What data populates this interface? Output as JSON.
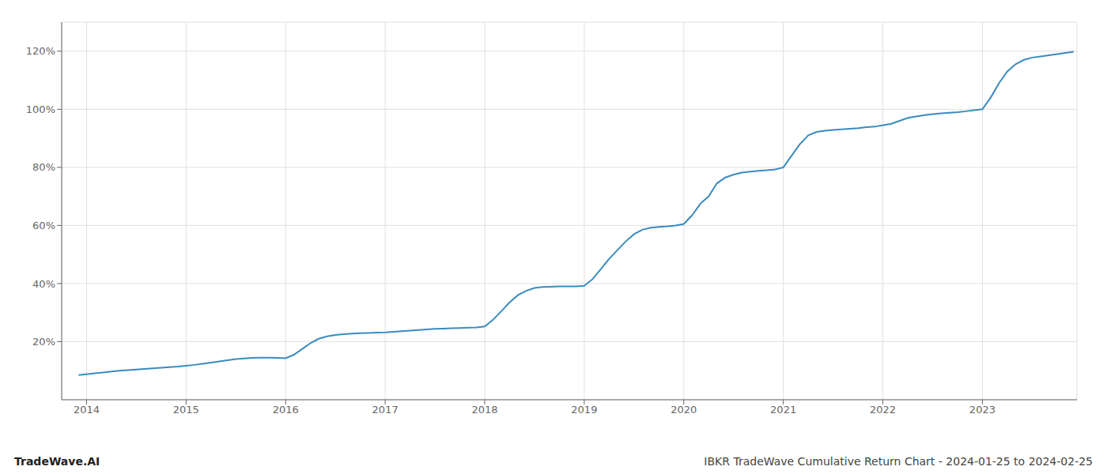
{
  "chart_data": {
    "type": "line",
    "title": "IBKR TradeWave Cumulative Return Chart - 2024-01-25 to 2024-02-25",
    "annotations": [
      "TradeWave.AI"
    ],
    "color": "#3a8bbf",
    "grid": true,
    "xlim": [
      2013.75,
      2023.95
    ],
    "ylim": [
      0,
      130
    ],
    "xticks": [
      2014,
      2015,
      2016,
      2017,
      2018,
      2019,
      2020,
      2021,
      2022,
      2023
    ],
    "yticks": [
      {
        "value": 20,
        "label": "20%"
      },
      {
        "value": 40,
        "label": "40%"
      },
      {
        "value": 60,
        "label": "60%"
      },
      {
        "value": 80,
        "label": "80%"
      },
      {
        "value": 100,
        "label": "100%"
      },
      {
        "value": 120,
        "label": "120%"
      }
    ],
    "x": [
      2013.92,
      2014.0,
      2014.083,
      2014.167,
      2014.25,
      2014.333,
      2014.417,
      2014.5,
      2014.583,
      2014.667,
      2014.75,
      2014.833,
      2014.917,
      2015.0,
      2015.083,
      2015.167,
      2015.25,
      2015.333,
      2015.417,
      2015.5,
      2015.583,
      2015.667,
      2015.75,
      2015.833,
      2015.917,
      2016.0,
      2016.083,
      2016.167,
      2016.25,
      2016.333,
      2016.417,
      2016.5,
      2016.583,
      2016.667,
      2016.75,
      2016.833,
      2016.917,
      2017.0,
      2017.083,
      2017.167,
      2017.25,
      2017.333,
      2017.417,
      2017.5,
      2017.583,
      2017.667,
      2017.75,
      2017.833,
      2017.917,
      2018.0,
      2018.083,
      2018.167,
      2018.25,
      2018.333,
      2018.417,
      2018.5,
      2018.583,
      2018.667,
      2018.75,
      2018.833,
      2018.917,
      2019.0,
      2019.083,
      2019.167,
      2019.25,
      2019.333,
      2019.417,
      2019.5,
      2019.583,
      2019.667,
      2019.75,
      2019.833,
      2019.917,
      2020.0,
      2020.083,
      2020.167,
      2020.25,
      2020.333,
      2020.417,
      2020.5,
      2020.583,
      2020.667,
      2020.75,
      2020.833,
      2020.917,
      2021.0,
      2021.083,
      2021.167,
      2021.25,
      2021.333,
      2021.417,
      2021.5,
      2021.583,
      2021.667,
      2021.75,
      2021.833,
      2021.917,
      2022.0,
      2022.083,
      2022.167,
      2022.25,
      2022.333,
      2022.417,
      2022.5,
      2022.583,
      2022.667,
      2022.75,
      2022.833,
      2022.917,
      2023.0,
      2023.083,
      2023.167,
      2023.25,
      2023.333,
      2023.417,
      2023.5,
      2023.583,
      2023.667,
      2023.75,
      2023.833,
      2023.917
    ],
    "values": [
      8.5,
      8.8,
      9.1,
      9.4,
      9.7,
      10.0,
      10.2,
      10.4,
      10.6,
      10.8,
      11.0,
      11.2,
      11.4,
      11.7,
      12.0,
      12.4,
      12.8,
      13.2,
      13.6,
      14.0,
      14.2,
      14.4,
      14.5,
      14.5,
      14.4,
      14.3,
      15.5,
      17.5,
      19.5,
      21.0,
      21.8,
      22.3,
      22.6,
      22.8,
      22.9,
      23.0,
      23.1,
      23.2,
      23.4,
      23.6,
      23.8,
      24.0,
      24.2,
      24.4,
      24.5,
      24.6,
      24.7,
      24.8,
      24.9,
      25.2,
      27.5,
      30.5,
      33.5,
      36.0,
      37.5,
      38.5,
      38.8,
      38.9,
      39.0,
      39.0,
      39.0,
      39.2,
      41.5,
      45.0,
      48.5,
      51.5,
      54.5,
      57.0,
      58.5,
      59.2,
      59.5,
      59.7,
      60.0,
      60.5,
      63.5,
      67.5,
      70.0,
      74.5,
      76.5,
      77.5,
      78.2,
      78.5,
      78.8,
      79.0,
      79.3,
      80.0,
      84.0,
      88.0,
      91.0,
      92.2,
      92.6,
      92.9,
      93.1,
      93.3,
      93.5,
      93.8,
      94.0,
      94.5,
      95.0,
      96.0,
      97.0,
      97.5,
      98.0,
      98.3,
      98.6,
      98.8,
      99.0,
      99.3,
      99.7,
      100.0,
      104.0,
      109.0,
      113.0,
      115.5,
      117.0,
      117.8,
      118.2,
      118.6,
      119.0,
      119.4,
      119.8
    ]
  }
}
